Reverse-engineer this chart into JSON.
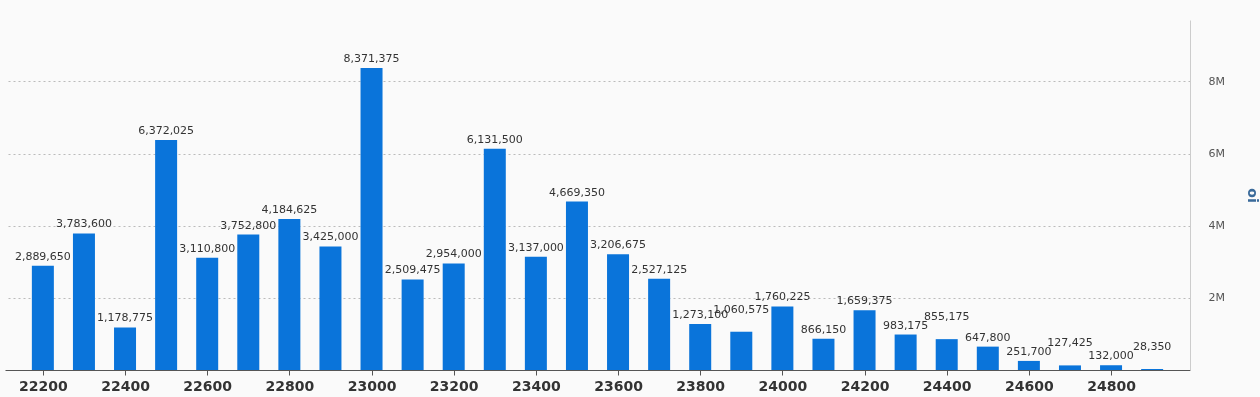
{
  "chart_data": {
    "type": "bar",
    "ylabel": "oi",
    "x": [
      22200,
      22300,
      22400,
      22500,
      22600,
      22700,
      22800,
      22900,
      23000,
      23100,
      23200,
      23300,
      23400,
      23500,
      23600,
      23700,
      23800,
      23900,
      24000,
      24100,
      24200,
      24300,
      24400,
      24500,
      24600,
      24700,
      24800,
      24900
    ],
    "values": [
      2889650,
      3783600,
      1178775,
      6372025,
      3110800,
      3752800,
      4184625,
      3425000,
      8371375,
      2509475,
      2954000,
      6131500,
      3137000,
      4669350,
      3206675,
      2527125,
      1273100,
      1060575,
      1760225,
      866150,
      1659375,
      983175,
      855175,
      647800,
      251700,
      127425,
      132000,
      28350
    ],
    "color": "#0a74da",
    "xlim": [
      22120,
      24980
    ],
    "xticks": [
      22200,
      22400,
      22600,
      22800,
      23000,
      23200,
      23400,
      23600,
      23800,
      24000,
      24200,
      24400,
      24600,
      24800
    ],
    "ylim": [
      0,
      9700000
    ],
    "yticks": [
      {
        "value": 2000000,
        "label": "2M"
      },
      {
        "value": 4000000,
        "label": "4M"
      },
      {
        "value": 6000000,
        "label": "6M"
      },
      {
        "value": 8000000,
        "label": "8M"
      }
    ],
    "grid": "y",
    "value_labels": [
      "2,889,650",
      "3,783,600",
      "1,178,775",
      "6,372,025",
      "3,110,800",
      "3,752,800",
      "4,184,625",
      "3,425,000",
      "8,371,375",
      "2,509,475",
      "2,954,000",
      "6,131,500",
      "3,137,000",
      "4,669,350",
      "3,206,675",
      "2,527,125",
      "1,273,100",
      "1,060,575",
      "1,760,225",
      "866,150",
      "1,659,375",
      "983,175",
      "855,175",
      "647,800",
      "251,700",
      "127,425",
      "132,000",
      "28,350"
    ]
  }
}
